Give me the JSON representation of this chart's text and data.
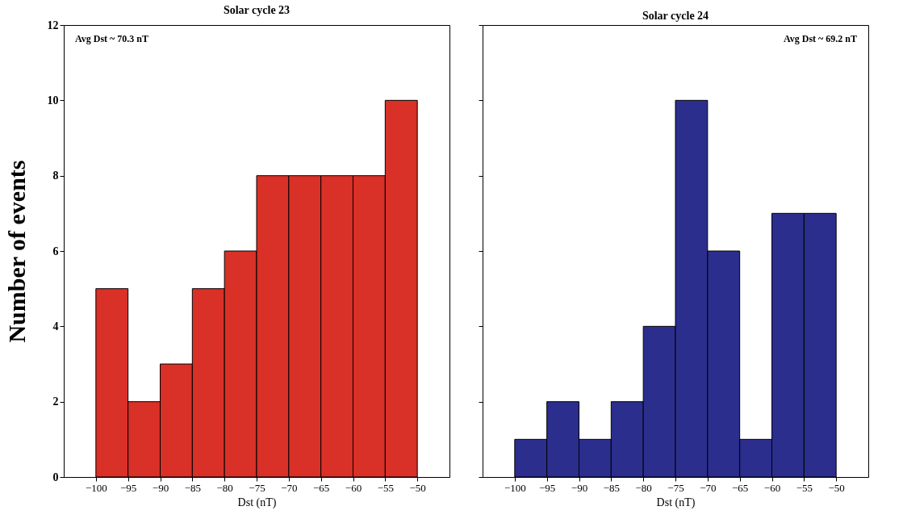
{
  "chart_data": [
    {
      "type": "histogram",
      "title": "Solar cycle 23",
      "xlabel": "Dst (nT)",
      "ylabel": "Number of events",
      "bins": [
        -100,
        -95,
        -90,
        -85,
        -80,
        -75,
        -70,
        -65,
        -60,
        -55,
        -50
      ],
      "values": [
        5,
        2,
        3,
        5,
        6,
        8,
        8,
        8,
        8,
        10
      ],
      "color": "#d93027",
      "xlim": [
        -105,
        -45
      ],
      "xticks": [
        -100,
        -95,
        -90,
        -85,
        -80,
        -75,
        -70,
        -65,
        -60,
        -55,
        -50
      ],
      "ylim": [
        0,
        12
      ],
      "yticks": [
        0,
        2,
        4,
        6,
        8,
        10,
        12
      ],
      "grid": false,
      "annotations": [
        "Avg Dst ~ 70.3 nT"
      ]
    },
    {
      "type": "histogram",
      "title": "Solar cycle 24",
      "xlabel": "Dst (nT)",
      "bins": [
        -100,
        -95,
        -90,
        -85,
        -80,
        -75,
        -70,
        -65,
        -60,
        -55,
        -50
      ],
      "values": [
        1,
        2,
        1,
        2,
        4,
        10,
        6,
        1,
        7,
        7
      ],
      "color": "#2b2e8c",
      "xlim": [
        -105,
        -45
      ],
      "xticks": [
        -100,
        -95,
        -90,
        -85,
        -80,
        -75,
        -70,
        -65,
        -60,
        -55,
        -50
      ],
      "ylim": [
        0,
        12
      ],
      "yticks": [
        0,
        2,
        4,
        6,
        8,
        10,
        12
      ],
      "grid": false,
      "tick_labels": "x",
      "annotations": [
        "Avg Dst ~ 69.2 nT"
      ]
    }
  ]
}
